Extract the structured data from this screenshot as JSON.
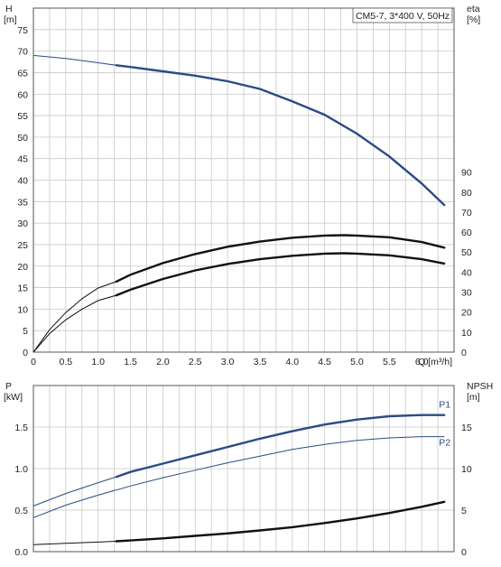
{
  "chart_data": [
    {
      "type": "line",
      "legend": "CM5-7, 3*400 V, 50Hz",
      "xlabel": "Q [m³/h]",
      "ylabel_left": [
        "H",
        "[m]"
      ],
      "ylabel_right": [
        "eta",
        "[%]"
      ],
      "xlim": [
        0,
        6.5
      ],
      "ylim_left": [
        0,
        80
      ],
      "ylim_right": [
        0,
        172
      ],
      "x_ticks": [
        "0",
        "0.5",
        "1.0",
        "1.5",
        "2.0",
        "2.5",
        "3.0",
        "3.5",
        "4.0",
        "4.5",
        "5.0",
        "5.5",
        "6.0"
      ],
      "y_ticks_left": [
        "0",
        "5",
        "10",
        "15",
        "20",
        "25",
        "30",
        "35",
        "40",
        "45",
        "50",
        "55",
        "60",
        "65",
        "70",
        "75"
      ],
      "y_ticks_right": [
        "0",
        "10",
        "20",
        "30",
        "40",
        "50",
        "60",
        "70",
        "80",
        "90"
      ],
      "grid": true,
      "series": [
        {
          "name": "",
          "axis": "left",
          "color": "#2c4a86",
          "thin_x": [
            0,
            0.5,
            1.0,
            1.28
          ],
          "thin_y": [
            69.0,
            68.3,
            67.3,
            66.7
          ],
          "x": [
            1.28,
            1.5,
            2.0,
            2.5,
            3.0,
            3.5,
            4.0,
            4.5,
            5.0,
            5.5,
            6.0,
            6.35
          ],
          "y": [
            66.7,
            66.3,
            65.3,
            64.3,
            63.0,
            61.2,
            58.3,
            55.2,
            50.8,
            45.5,
            39.2,
            34.2
          ]
        },
        {
          "name": "",
          "axis": "left",
          "color": "#111111",
          "thin_x": [
            0,
            0.25,
            0.5,
            0.75,
            1.0,
            1.28
          ],
          "thin_y": [
            0,
            5.2,
            9.2,
            12.4,
            14.9,
            16.4
          ],
          "x": [
            1.28,
            1.5,
            2.0,
            2.5,
            3.0,
            3.5,
            4.0,
            4.5,
            4.8,
            5.0,
            5.5,
            6.0,
            6.35
          ],
          "y": [
            16.4,
            18.0,
            20.7,
            22.8,
            24.5,
            25.7,
            26.6,
            27.1,
            27.2,
            27.1,
            26.7,
            25.6,
            24.3
          ]
        },
        {
          "name": "",
          "axis": "left",
          "color": "#111111",
          "thin_x": [
            0,
            0.25,
            0.5,
            0.75,
            1.0,
            1.28
          ],
          "thin_y": [
            0,
            4.3,
            7.5,
            10.0,
            12.0,
            13.2
          ],
          "x": [
            1.28,
            1.5,
            2.0,
            2.5,
            3.0,
            3.5,
            4.0,
            4.5,
            4.8,
            5.0,
            5.5,
            6.0,
            6.35
          ],
          "y": [
            13.2,
            14.5,
            17.0,
            19.0,
            20.5,
            21.6,
            22.4,
            22.9,
            23.0,
            22.9,
            22.5,
            21.6,
            20.6
          ]
        }
      ]
    },
    {
      "type": "line",
      "xlabel": "",
      "ylabel_left": [
        "P",
        "[kW]"
      ],
      "ylabel_right": [
        "NPSH",
        "[m]"
      ],
      "xlim": [
        0,
        6.5
      ],
      "ylim_left": [
        0,
        2.0
      ],
      "ylim_right": [
        0,
        20
      ],
      "y_ticks_left": [
        "0.0",
        "0.5",
        "1.0",
        "1.5"
      ],
      "y_ticks_right": [
        "0",
        "5",
        "10",
        "15"
      ],
      "grid": true,
      "series": [
        {
          "name": "P1",
          "axis": "left",
          "color": "#2c4a86",
          "thin_x": [
            0,
            0.5,
            1.0,
            1.28
          ],
          "thin_y": [
            0.55,
            0.7,
            0.83,
            0.9
          ],
          "x": [
            1.28,
            1.5,
            2.0,
            2.5,
            3.0,
            3.5,
            4.0,
            4.5,
            5.0,
            5.5,
            6.0,
            6.35
          ],
          "y": [
            0.9,
            0.96,
            1.06,
            1.16,
            1.26,
            1.36,
            1.45,
            1.53,
            1.59,
            1.63,
            1.645,
            1.645
          ]
        },
        {
          "name": "P2",
          "axis": "left",
          "color": "#2c4a86",
          "thin_x": [
            0,
            0.5,
            1.0,
            1.5,
            2.0,
            2.5,
            3.0,
            3.5,
            4.0,
            4.5,
            5.0,
            5.5,
            6.0,
            6.35
          ],
          "thin_y": [
            0.41,
            0.56,
            0.68,
            0.79,
            0.89,
            0.98,
            1.07,
            1.15,
            1.23,
            1.29,
            1.34,
            1.37,
            1.385,
            1.385
          ],
          "x": [],
          "y": []
        },
        {
          "name": "",
          "axis": "right",
          "color": "#111111",
          "thin_x": [
            0,
            0.5,
            1.0,
            1.28
          ],
          "thin_y": [
            0.85,
            1.0,
            1.15,
            1.25
          ],
          "x": [
            1.28,
            1.5,
            2.0,
            2.5,
            3.0,
            3.5,
            4.0,
            4.5,
            5.0,
            5.5,
            6.0,
            6.35
          ],
          "y": [
            1.25,
            1.35,
            1.6,
            1.9,
            2.2,
            2.55,
            2.95,
            3.45,
            4.0,
            4.65,
            5.4,
            6.0
          ]
        }
      ]
    }
  ]
}
